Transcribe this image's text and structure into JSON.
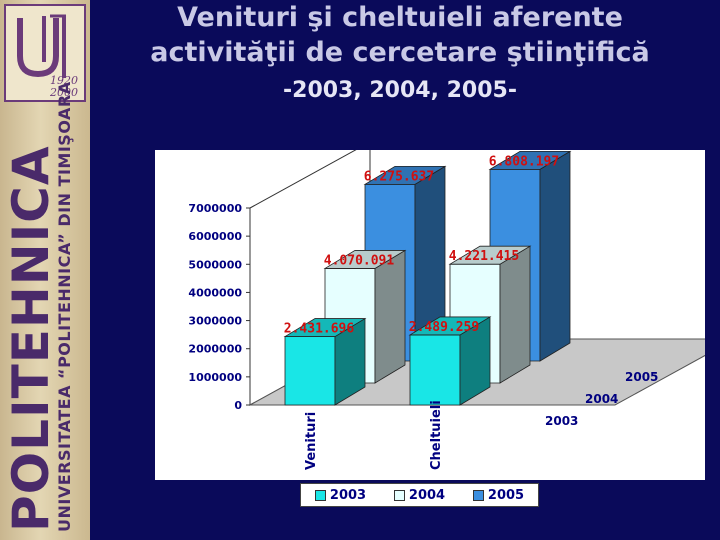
{
  "slide": {
    "title": "Venituri şi cheltuieli aferente activităţii de cercetare ştiinţifică",
    "subtitle": "-2003, 2004, 2005-"
  },
  "sidebar": {
    "brand": "POLITEHNICA",
    "university": "UNIVERSITATEA “POLITEHNICA” DIN TIMIŞOARA",
    "logo_year_start": "1920",
    "logo_year_end": "2000",
    "accent": "#6b3b7a"
  },
  "chart_data": {
    "type": "bar",
    "variant": "3d-grouped",
    "categories": [
      "Venituri",
      "Cheltuieli"
    ],
    "series": [
      {
        "name": "2003",
        "values": [
          2431696,
          2489259
        ],
        "labels": [
          "2.431.696",
          "2.489.259"
        ],
        "color": "#19e6e6"
      },
      {
        "name": "2004",
        "values": [
          4070091,
          4221415
        ],
        "labels": [
          "4.070.091",
          "4.221.415"
        ],
        "color": "#e6ffff"
      },
      {
        "name": "2005",
        "values": [
          6275637,
          6808197
        ],
        "labels": [
          "6.275.637",
          "6.808.197"
        ],
        "color": "#3b8fe0"
      }
    ],
    "y_ticks": [
      "0",
      "1000000",
      "2000000",
      "3000000",
      "4000000",
      "5000000",
      "6000000",
      "7000000"
    ],
    "ylim": [
      0,
      7000000
    ],
    "legend_position": "bottom",
    "data_label_color": "#d01010"
  }
}
